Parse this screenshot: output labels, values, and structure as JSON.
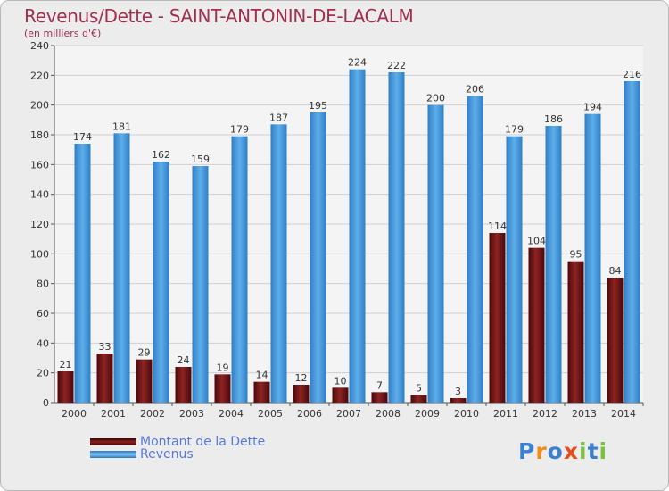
{
  "chart_data": {
    "type": "bar",
    "title": "Revenus/Dette - SAINT-ANTONIN-DE-LACALM",
    "subtitle": "(en milliers d'€)",
    "categories": [
      "2000",
      "2001",
      "2002",
      "2003",
      "2004",
      "2005",
      "2006",
      "2007",
      "2008",
      "2009",
      "2010",
      "2011",
      "2012",
      "2013",
      "2014"
    ],
    "series": [
      {
        "name": "Montant de la Dette",
        "color": "#7a1a1a",
        "values": [
          21,
          33,
          29,
          24,
          19,
          14,
          12,
          10,
          7,
          5,
          3,
          114,
          104,
          95,
          84
        ]
      },
      {
        "name": "Revenus",
        "color": "#4a9de0",
        "values": [
          174,
          181,
          162,
          159,
          179,
          187,
          195,
          224,
          222,
          200,
          206,
          179,
          186,
          194,
          216
        ]
      }
    ],
    "yticks": [
      0,
      20,
      40,
      60,
      80,
      100,
      120,
      140,
      160,
      180,
      200,
      220,
      240
    ],
    "ylim": [
      0,
      240
    ],
    "grid": true,
    "legend_position": "bottom-left"
  },
  "logo": {
    "text": "Proxiti",
    "colors": [
      "#3a7fd0",
      "#f08a1c",
      "#3a7fd0",
      "#e84a1a",
      "#7ac142",
      "#3a7fd0",
      "#7ac142"
    ]
  }
}
